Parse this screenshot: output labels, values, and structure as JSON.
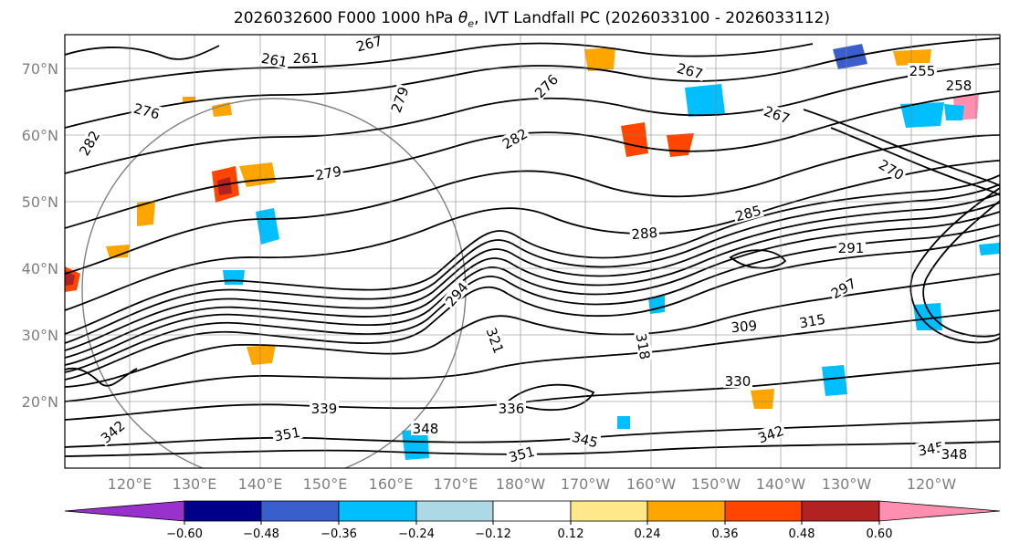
{
  "title_main": "2026032600 F000 1000 hPa ",
  "title_symbol": "θ",
  "title_sub": "e",
  "title_rest": ", IVT Landfall PC (2026033100 - 2026033112)",
  "lat_labels": [
    "70°N",
    "60°N",
    "50°N",
    "40°N",
    "30°N",
    "20°N"
  ],
  "lon_labels": [
    "120°E",
    "130°E",
    "140°E",
    "150°E",
    "160°E",
    "170°E",
    "180°W",
    "170°W",
    "160°W",
    "150°W",
    "140°W",
    "130°W",
    "120°W"
  ],
  "colorbar": {
    "colors": [
      "#9932cc",
      "#00008b",
      "#3a5fcd",
      "#00bfff",
      "#add8e6",
      "#ffffff",
      "#ffe88a",
      "#ffa500",
      "#ff4500",
      "#b22222",
      "#ff8fb1"
    ],
    "tick_labels": [
      "−0.60",
      "−0.48",
      "−0.36",
      "−0.24",
      "−0.12",
      "0.12",
      "0.24",
      "0.36",
      "0.48",
      "0.60"
    ]
  },
  "contour_labels": [
    {
      "text": "267"
    },
    {
      "text": "261"
    },
    {
      "text": "261"
    },
    {
      "text": "267"
    },
    {
      "text": "267"
    },
    {
      "text": "276"
    },
    {
      "text": "276"
    },
    {
      "text": "282"
    },
    {
      "text": "282"
    },
    {
      "text": "279"
    },
    {
      "text": "279"
    },
    {
      "text": "270"
    },
    {
      "text": "285"
    },
    {
      "text": "288"
    },
    {
      "text": "291"
    },
    {
      "text": "297"
    },
    {
      "text": "294"
    },
    {
      "text": "309"
    },
    {
      "text": "315"
    },
    {
      "text": "318"
    },
    {
      "text": "321"
    },
    {
      "text": "330"
    },
    {
      "text": "339"
    },
    {
      "text": "336"
    },
    {
      "text": "348"
    },
    {
      "text": "351"
    },
    {
      "text": "351"
    },
    {
      "text": "345"
    },
    {
      "text": "342"
    },
    {
      "text": "345"
    },
    {
      "text": "348"
    },
    {
      "text": "342"
    },
    {
      "text": "255"
    },
    {
      "text": "258"
    }
  ]
}
